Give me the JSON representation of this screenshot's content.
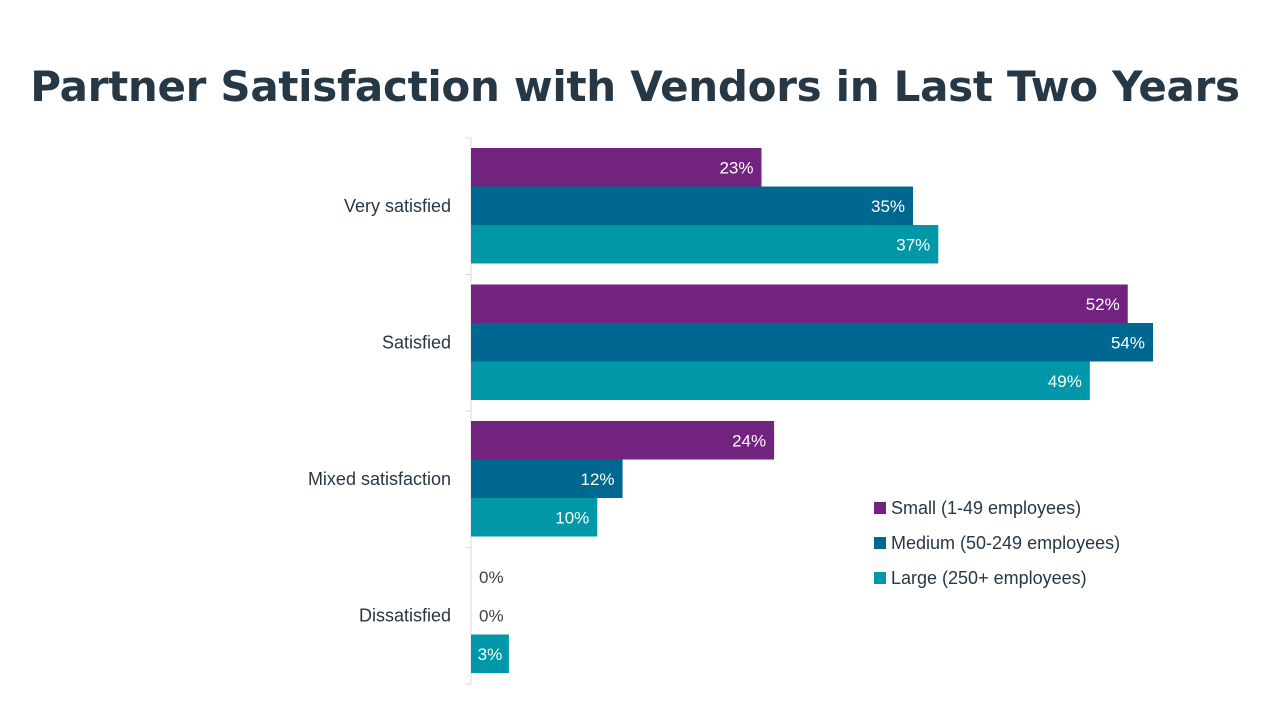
{
  "chart_data": {
    "type": "bar",
    "orientation": "horizontal",
    "title": "Partner Satisfaction with Vendors in Last Two Years",
    "categories": [
      "Very satisfied",
      "Satisfied",
      "Mixed satisfaction",
      "Dissatisfied"
    ],
    "series": [
      {
        "name": "Small (1-49 employees)",
        "color": "#71237f",
        "values": [
          23,
          52,
          24,
          0
        ],
        "labels": [
          "23%",
          "52%",
          "24%",
          "0%"
        ]
      },
      {
        "name": "Medium (50-249 employees)",
        "color": "#006890",
        "values": [
          35,
          54,
          12,
          0
        ],
        "labels": [
          "35%",
          "54%",
          "12%",
          "0%"
        ]
      },
      {
        "name": "Large (250+ employees)",
        "color": "#0098a8",
        "values": [
          37,
          49,
          10,
          3
        ],
        "labels": [
          "37%",
          "49%",
          "10%",
          "3%"
        ]
      }
    ],
    "xlim": [
      0,
      54
    ],
    "unit": "%",
    "grid": false,
    "legend": "bottom-right",
    "xlabel": "",
    "ylabel": ""
  }
}
